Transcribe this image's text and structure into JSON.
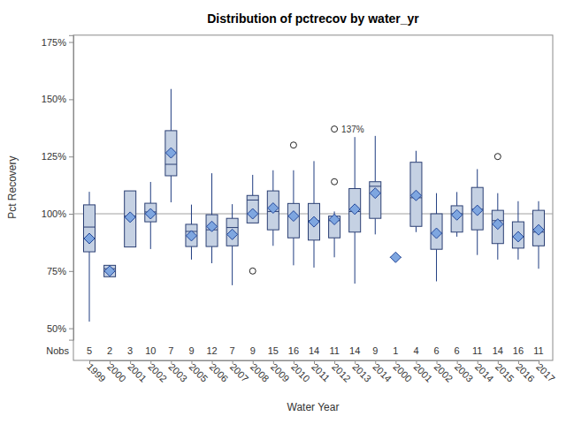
{
  "chart_data": {
    "type": "box",
    "title": "Distribution of pctrecov by water_yr",
    "x_label": "Water Year",
    "y_label": "Pct Recovery",
    "categories": [
      "1999",
      "2000",
      "2001",
      "2002",
      "2003",
      "2005",
      "2006",
      "2007",
      "2008",
      "2009",
      "2010",
      "2011",
      "2012",
      "2013",
      "2014",
      "2000",
      "2001",
      "2002",
      "2003",
      "2014",
      "2015",
      "2016",
      "2017"
    ],
    "whisker_low": [
      52.9,
      72.5,
      85.5,
      84.6,
      105,
      80,
      78.4,
      68.8,
      96,
      86,
      77.5,
      76.5,
      81,
      69.5,
      91,
      81,
      92,
      70.5,
      90,
      82,
      80,
      80,
      76
    ],
    "q1": [
      83.4,
      72.5,
      85.5,
      96.5,
      116.6,
      85.7,
      85.7,
      86,
      96,
      93,
      89.5,
      88.5,
      89.5,
      92,
      98,
      81,
      94.5,
      84.5,
      92,
      93,
      87,
      85,
      86
    ],
    "median": [
      94.2,
      76,
      99,
      100.8,
      121.6,
      92.3,
      93,
      94,
      106,
      101,
      99,
      97,
      97,
      101,
      112,
      81,
      107,
      91.5,
      100,
      102,
      97,
      90,
      92
    ],
    "q3": [
      103.9,
      77.5,
      110,
      104.6,
      136.3,
      95.4,
      99.6,
      98,
      108,
      110,
      104.5,
      104.5,
      99,
      111,
      114,
      81,
      122.5,
      100,
      103.5,
      111.5,
      101.5,
      96.5,
      101.5
    ],
    "whisker_high": [
      109.6,
      77.5,
      110,
      113.9,
      154.5,
      104,
      117.7,
      104.2,
      117,
      119,
      119,
      123,
      101,
      133.5,
      134,
      81,
      127.5,
      109,
      109.5,
      119.5,
      109,
      105.5,
      105.5
    ],
    "mean": [
      89.2,
      75,
      98.5,
      100,
      126.6,
      90.4,
      94.5,
      91,
      100,
      102.5,
      99,
      96.5,
      97.5,
      102,
      109,
      81,
      108,
      91.5,
      99.5,
      101.5,
      95.5,
      90,
      93
    ],
    "outliers": [
      [],
      [],
      [],
      [],
      [],
      [],
      [],
      [],
      [
        75
      ],
      [],
      [
        130
      ],
      [],
      [
        114,
        137
      ],
      [],
      [],
      [],
      [],
      [],
      [],
      [],
      [
        125
      ],
      [],
      []
    ],
    "nobs_label": "Nobs",
    "n": [
      5,
      2,
      3,
      10,
      7,
      9,
      12,
      7,
      9,
      15,
      16,
      14,
      11,
      14,
      9,
      1,
      4,
      6,
      6,
      11,
      14,
      16,
      11
    ],
    "annotations": [
      {
        "text": "137%",
        "value": 137
      }
    ],
    "reference_line": 100,
    "color": "#c5d1e3",
    "ylim": [
      45,
      178
    ],
    "yticks": [
      {
        "value": 50,
        "label": "50%"
      },
      {
        "value": 75,
        "label": "75%"
      },
      {
        "value": 100,
        "label": "100%"
      },
      {
        "value": 125,
        "label": "125%"
      },
      {
        "value": 150,
        "label": "150%"
      },
      {
        "value": 175,
        "label": "175%"
      }
    ],
    "grid": false
  }
}
